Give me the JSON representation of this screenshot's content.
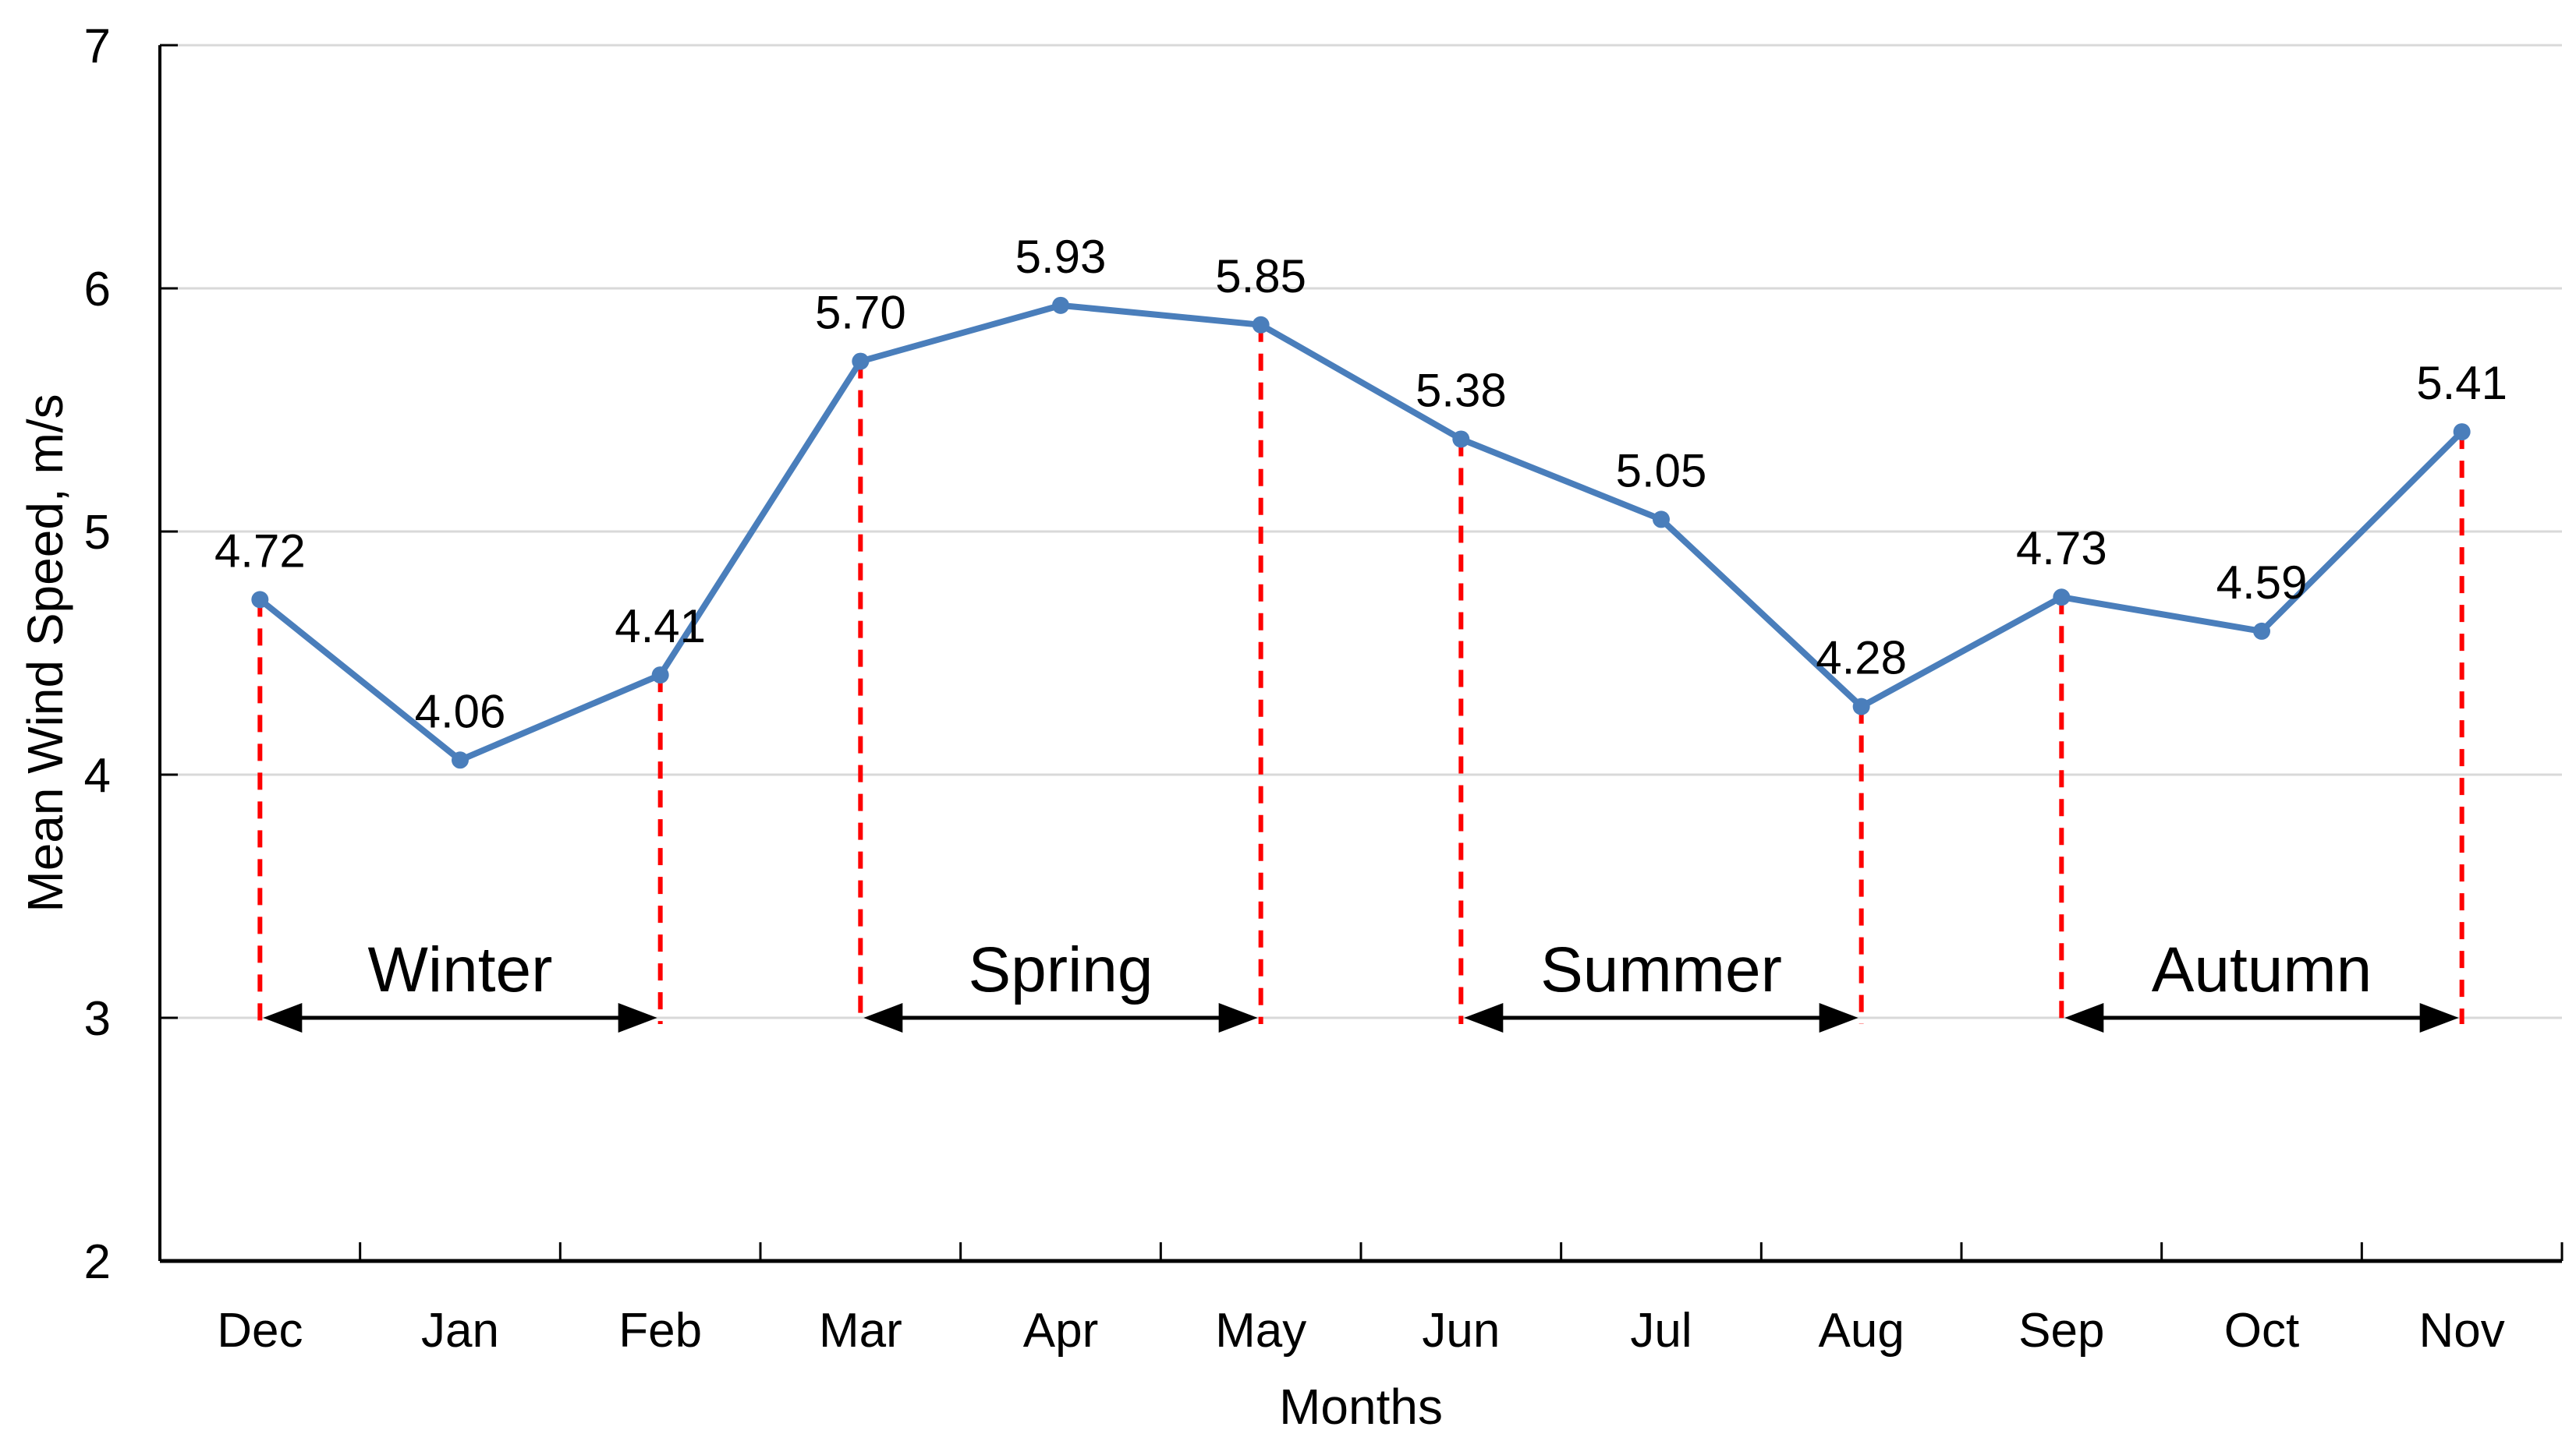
{
  "page": {
    "background": "#ffffff"
  },
  "chart_data": {
    "type": "line",
    "title": "",
    "xlabel": "Months",
    "ylabel": "Mean Wind Speed, m/s",
    "categories": [
      "Dec",
      "Jan",
      "Feb",
      "Mar",
      "Apr",
      "May",
      "Jun",
      "Jul",
      "Aug",
      "Sep",
      "Oct",
      "Nov"
    ],
    "series": [
      {
        "name": "Mean Wind Speed",
        "values": [
          4.72,
          4.06,
          4.41,
          5.7,
          5.93,
          5.85,
          5.38,
          5.05,
          4.28,
          4.73,
          4.59,
          5.41
        ],
        "data_labels": [
          "4.72",
          "4.06",
          "4.41",
          "5.70",
          "5.93",
          "5.85",
          "5.38",
          "5.05",
          "4.28",
          "4.73",
          "4.59",
          "5.41"
        ],
        "color": "#4a7ebb",
        "marker": "circle"
      }
    ],
    "ylim": [
      2,
      7
    ],
    "yticks": [
      2,
      3,
      4,
      5,
      6,
      7
    ],
    "ytick_labels": [
      "2",
      "3",
      "4",
      "5",
      "6",
      "7"
    ],
    "grid": true,
    "legend": "none",
    "season_annotations": {
      "level": 3,
      "arrow_color": "#000000",
      "boundary_line_color": "#fe0000",
      "boundary_line_style": "dashed",
      "items": [
        {
          "label": "Winter",
          "start_month": "Dec",
          "end_month": "Feb",
          "start_index": 0,
          "end_index": 2
        },
        {
          "label": "Spring",
          "start_month": "Mar",
          "end_month": "May",
          "start_index": 3,
          "end_index": 5
        },
        {
          "label": "Summer",
          "start_month": "Jun",
          "end_month": "Aug",
          "start_index": 6,
          "end_index": 8
        },
        {
          "label": "Autumn",
          "start_month": "Sep",
          "end_month": "Nov",
          "start_index": 9,
          "end_index": 11
        }
      ]
    },
    "colors": {
      "grid": "#d9d9d9",
      "axis": "#000000",
      "text": "#000000"
    }
  }
}
